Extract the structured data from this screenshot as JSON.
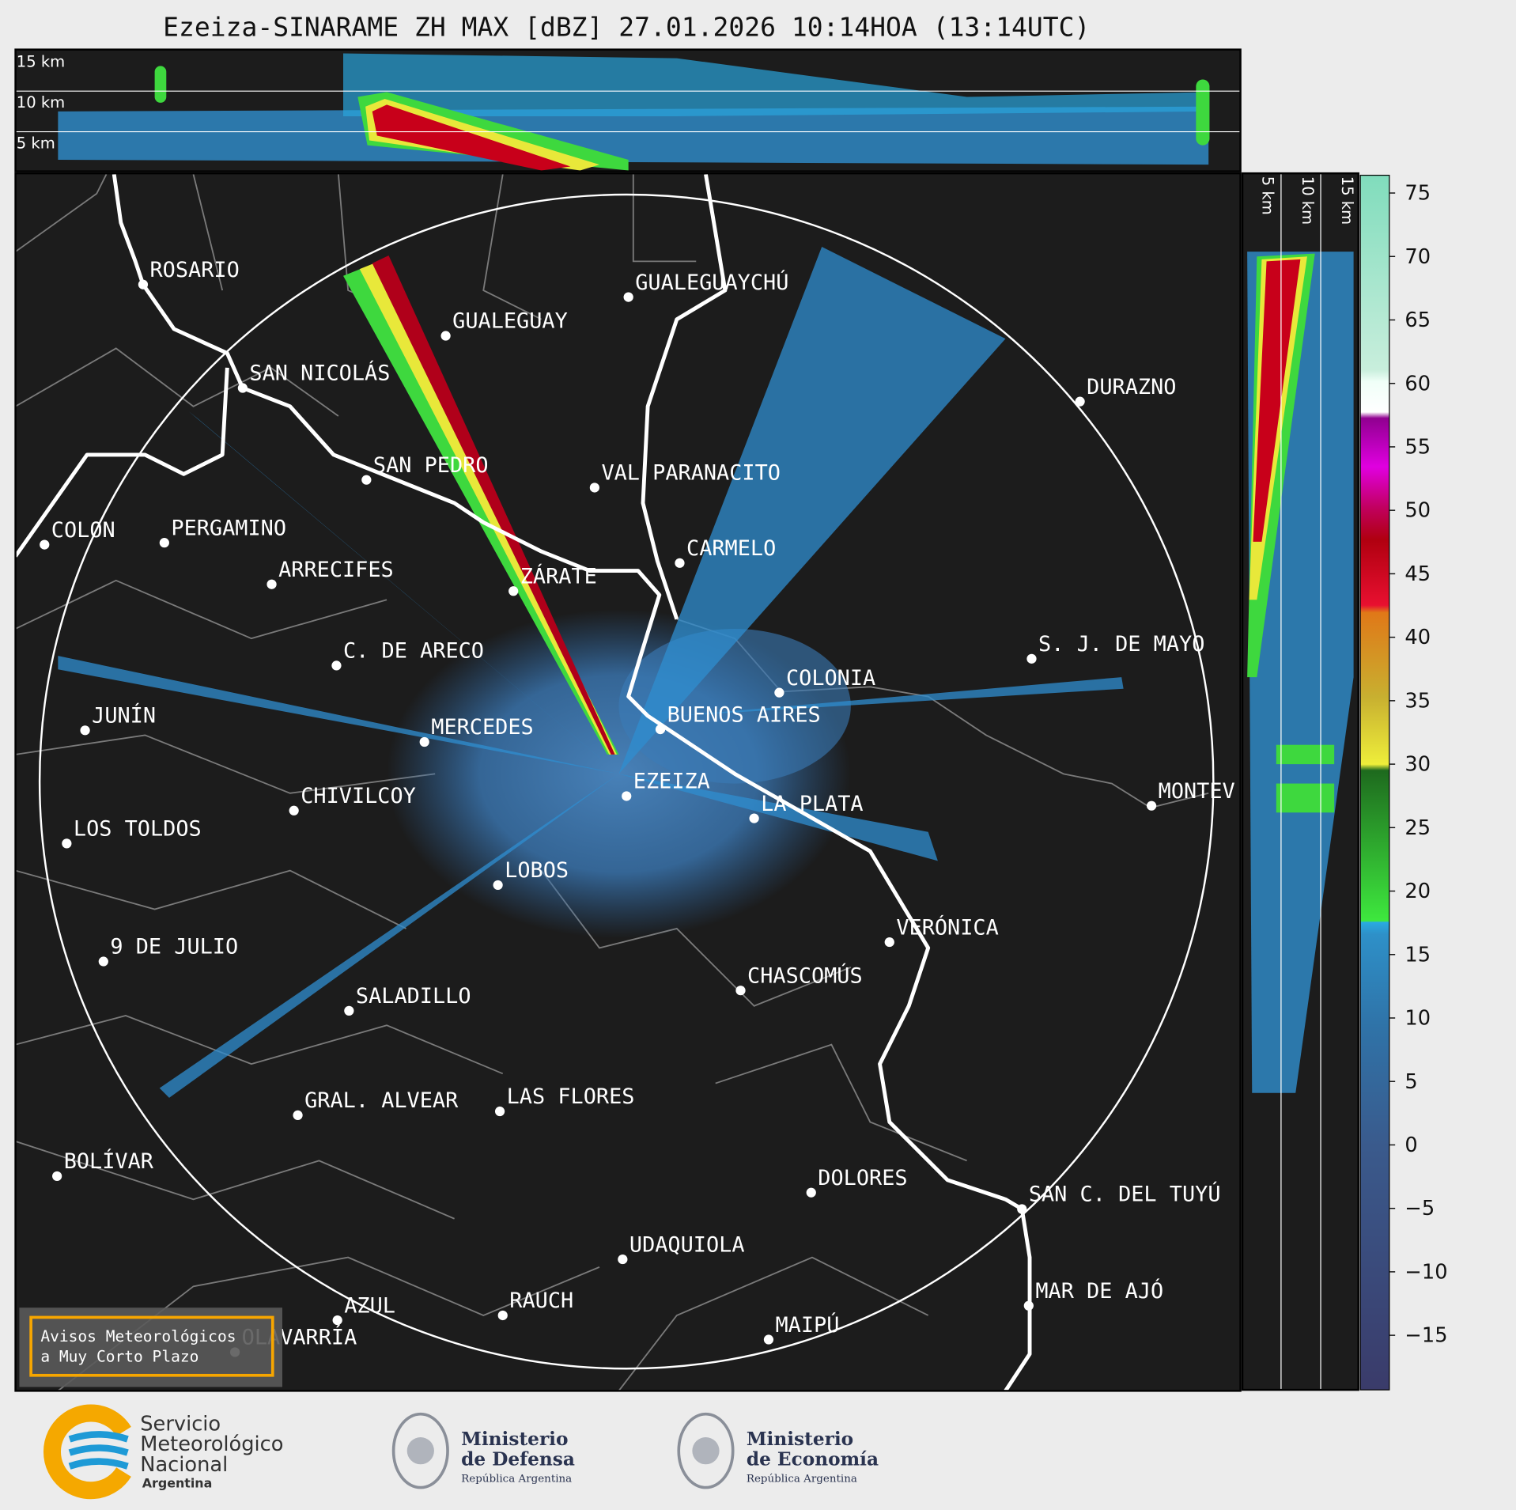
{
  "header": {
    "title": "Ezeiza-SINARAME ZH MAX [dBZ] 27.01.2026 10:14HOA (13:14UTC)"
  },
  "top_section": {
    "height_labels": [
      "15 km",
      "10 km",
      "5 km"
    ]
  },
  "side_section": {
    "height_labels": [
      "5 km",
      "10 km",
      "15 km"
    ]
  },
  "map": {
    "cities": [
      "ROSARIO",
      "GUALEGUAYCHÚ",
      "GUALEGUAY",
      "SAN NICOLÁS",
      "DURAZNO",
      "SAN PEDRO",
      "VAL PARANACITO",
      "COLON",
      "PERGAMINO",
      "CARMELO",
      "ARRECIFES",
      "ZÁRATE",
      "S. J. DE MAYO",
      "C. DE ARECO",
      "COLONIA",
      "BUENOS AIRES",
      "JUNÍN",
      "MERCEDES",
      "EZEIZA",
      "MONTEV",
      "CHIVILCOY",
      "LA PLATA",
      "LOS TOLDOS",
      "LOBOS",
      "VERÓNICA",
      "9 DE JULIO",
      "CHASCOMÚS",
      "SALADILLO",
      "GRAL. ALVEAR",
      "LAS FLORES",
      "BOLÍVAR",
      "DOLORES",
      "SAN C. DEL TUYÚ",
      "UDAQUIOLA",
      "MAR DE AJÓ",
      "AZUL",
      "RAUCH",
      "OLAVARRÍA",
      "MAIPÚ"
    ]
  },
  "colorbar": {
    "lim": [
      -19.3,
      76.4
    ],
    "ticks": [
      75,
      70,
      65,
      60,
      55,
      50,
      45,
      40,
      35,
      30,
      25,
      20,
      15,
      10,
      5,
      0,
      {
        "value": -5,
        "label": "−5"
      },
      {
        "value": -10,
        "label": "−10"
      },
      {
        "value": -15,
        "label": "−15"
      }
    ]
  },
  "notice": {
    "lines": [
      "Avisos Meteorológicos",
      "a Muy Corto Plazo"
    ]
  },
  "footer": {
    "smn": {
      "lines": [
        "Servicio",
        "Meteorológico",
        "Nacional"
      ],
      "country": "Argentina"
    },
    "defensa": {
      "lines": [
        "Ministerio",
        "de Defensa"
      ],
      "sub": "República Argentina"
    },
    "economia": {
      "lines": [
        "Ministerio",
        "de Economía"
      ],
      "sub": "República Argentina"
    }
  }
}
